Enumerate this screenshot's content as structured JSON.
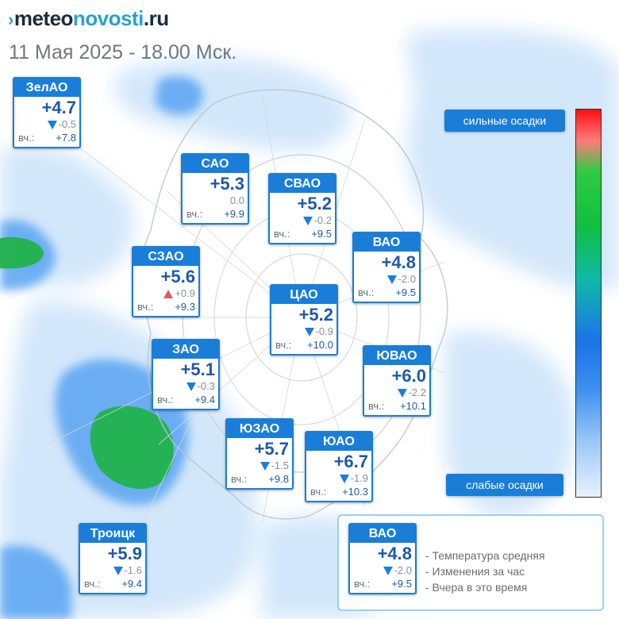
{
  "header": {
    "logo_mark": "›",
    "logo_part1": "meteo",
    "logo_part2": "novosti",
    "logo_part3": ".ru",
    "datetime": "11 Мая 2025 - 18.00 Мск."
  },
  "districts": [
    {
      "id": "zelao",
      "name": "ЗелАО",
      "temp": "+4.7",
      "trend": "down",
      "change": "-0.5",
      "yesterday_label": "вч.:",
      "yesterday": "+7.8"
    },
    {
      "id": "sao",
      "name": "САО",
      "temp": "+5.3",
      "trend": "none",
      "change": "0.0",
      "yesterday_label": "вч.:",
      "yesterday": "+9.9"
    },
    {
      "id": "svao",
      "name": "СВАО",
      "temp": "+5.2",
      "trend": "down",
      "change": "-0.2",
      "yesterday_label": "вч.:",
      "yesterday": "+9.5"
    },
    {
      "id": "vao",
      "name": "ВАО",
      "temp": "+4.8",
      "trend": "down",
      "change": "-2.0",
      "yesterday_label": "вч.:",
      "yesterday": "+9.5"
    },
    {
      "id": "szao",
      "name": "СЗАО",
      "temp": "+5.6",
      "trend": "up",
      "change": "+0.9",
      "yesterday_label": "вч.:",
      "yesterday": "+9.3"
    },
    {
      "id": "cao",
      "name": "ЦАО",
      "temp": "+5.2",
      "trend": "down",
      "change": "-0.9",
      "yesterday_label": "вч.:",
      "yesterday": "+10.0"
    },
    {
      "id": "zao",
      "name": "ЗАО",
      "temp": "+5.1",
      "trend": "down",
      "change": "-0.3",
      "yesterday_label": "вч.:",
      "yesterday": "+9.4"
    },
    {
      "id": "yuvao",
      "name": "ЮВАО",
      "temp": "+6.0",
      "trend": "down",
      "change": "-2.2",
      "yesterday_label": "вч.:",
      "yesterday": "+10.1"
    },
    {
      "id": "yuzao",
      "name": "ЮЗАО",
      "temp": "+5.7",
      "trend": "down",
      "change": "-1.5",
      "yesterday_label": "вч.:",
      "yesterday": "+9.8"
    },
    {
      "id": "yuao",
      "name": "ЮАО",
      "temp": "+6.7",
      "trend": "down",
      "change": "-1.9",
      "yesterday_label": "вч.:",
      "yesterday": "+10.3"
    },
    {
      "id": "troitsk",
      "name": "Троицк",
      "temp": "+5.9",
      "trend": "down",
      "change": "-1.6",
      "yesterday_label": "вч.:",
      "yesterday": "+9.4"
    }
  ],
  "scale": {
    "top_label": "сильные осадки",
    "bottom_label": "слабые осадки"
  },
  "legend": {
    "sample": {
      "name": "ВАО",
      "temp": "+4.8",
      "trend": "down",
      "change": "-2.0",
      "yesterday_label": "вч.:",
      "yesterday": "+9.5"
    },
    "items": [
      "- Температура средняя",
      "- Изменения за час",
      "- Вчера в это время"
    ]
  },
  "colors": {
    "card_header": "#1a7ed9",
    "temp_text": "#1d5aa8",
    "trend_down": "#1a7ed9",
    "trend_up": "#e05a5a",
    "precip_light": "#d3e8fb",
    "precip_medium": "#3a8ff0",
    "precip_heavy": "#22b24c"
  }
}
